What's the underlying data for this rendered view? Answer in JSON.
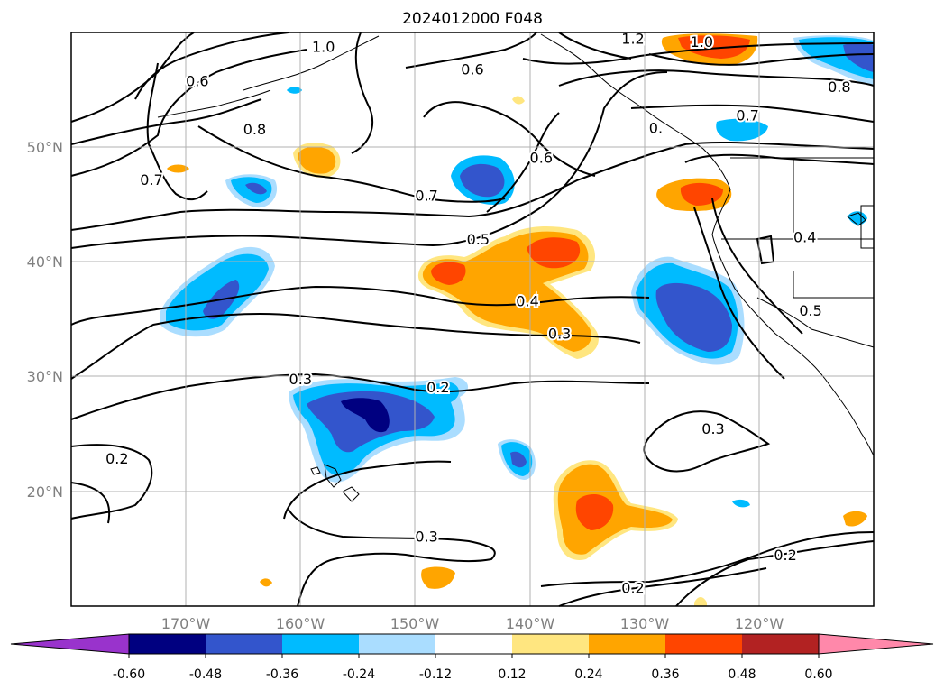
{
  "title": "2024012000 F048",
  "map": {
    "lon_range": [
      -180,
      -110
    ],
    "lat_range": [
      10,
      60
    ],
    "grid": true,
    "lat_labels": [
      "20°N",
      "30°N",
      "40°N",
      "50°N"
    ],
    "lon_labels": [
      "170°W",
      "160°W",
      "150°W",
      "140°W",
      "130°W",
      "120°W"
    ]
  },
  "contour_labels": [
    {
      "text": "1.0",
      "lon": -158,
      "lat": 58.8
    },
    {
      "text": "0.6",
      "lon": -169,
      "lat": 55.8
    },
    {
      "text": "0.8",
      "lon": -164,
      "lat": 51.6
    },
    {
      "text": "0.7",
      "lon": -173,
      "lat": 47.2
    },
    {
      "text": "0.7",
      "lon": -149,
      "lat": 45.8
    },
    {
      "text": "0.6",
      "lon": -145,
      "lat": 56.8
    },
    {
      "text": "1.2",
      "lon": -131,
      "lat": 59.5
    },
    {
      "text": "1.0",
      "lon": -125,
      "lat": 59.2
    },
    {
      "text": "0.8",
      "lon": -113,
      "lat": 55.3
    },
    {
      "text": "0.7",
      "lon": -121,
      "lat": 52.8
    },
    {
      "text": "0.",
      "lon": -129,
      "lat": 51.7
    },
    {
      "text": "0.6",
      "lon": -139,
      "lat": 49.1
    },
    {
      "text": "0.5",
      "lon": -144.5,
      "lat": 42.0
    },
    {
      "text": "0.4",
      "lon": -116,
      "lat": 42.2
    },
    {
      "text": "0.4",
      "lon": -140.2,
      "lat": 36.6
    },
    {
      "text": "0.5",
      "lon": -115.5,
      "lat": 35.8
    },
    {
      "text": "0.3",
      "lon": -137.4,
      "lat": 33.8
    },
    {
      "text": "0.3",
      "lon": -160,
      "lat": 29.8
    },
    {
      "text": "0.2",
      "lon": -148,
      "lat": 29.1
    },
    {
      "text": "0.3",
      "lon": -124,
      "lat": 25.5
    },
    {
      "text": "0.2",
      "lon": -176,
      "lat": 22.9
    },
    {
      "text": "0.3",
      "lon": -149,
      "lat": 16.1
    },
    {
      "text": "0.2",
      "lon": -117.7,
      "lat": 14.5
    },
    {
      "text": "0.2",
      "lon": -131,
      "lat": 11.6
    }
  ],
  "colorbar": {
    "ticks": [
      "-0.60",
      "-0.48",
      "-0.36",
      "-0.24",
      "-0.12",
      "0.12",
      "0.24",
      "0.36",
      "0.48",
      "0.60"
    ],
    "colors": [
      "#9933cc",
      "#000080",
      "#3355cc",
      "#00bbff",
      "#aaddff",
      "#ffffff",
      "#ffe680",
      "#ffa500",
      "#ff4500",
      "#b22222",
      "#ff88aa"
    ]
  }
}
